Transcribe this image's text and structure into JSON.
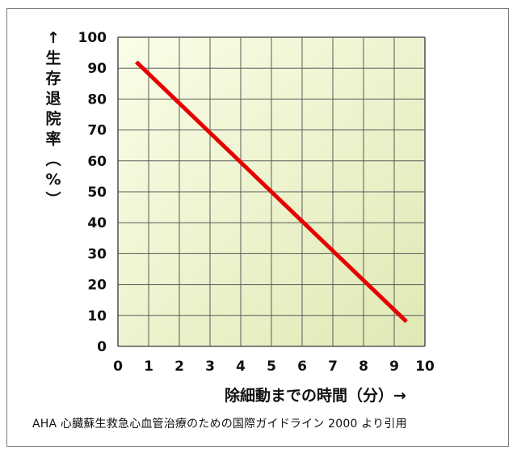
{
  "chart_data": {
    "type": "line",
    "xlabel": "除細動までの時間（分）→",
    "ylabel": "↑生存退院率（%）",
    "xlim": [
      0,
      10
    ],
    "ylim": [
      0,
      100
    ],
    "x_ticks": [
      "0",
      "1",
      "2",
      "3",
      "4",
      "5",
      "6",
      "7",
      "8",
      "9",
      "10"
    ],
    "y_ticks": [
      "0",
      "10",
      "20",
      "30",
      "40",
      "50",
      "60",
      "70",
      "80",
      "90",
      "100"
    ],
    "grid": true,
    "series": [
      {
        "x": [
          0.6,
          9.4
        ],
        "y": [
          92,
          8
        ],
        "color": "#e60000"
      }
    ],
    "annotation": "AHA 心臓蘇生救急心血管治療のための国際ガイドライン 2000 より引用",
    "colors": {
      "line": "#e60000",
      "grid": "#5a5a5a",
      "bg_light": "#fbfde8",
      "bg_dark": "#dfe9b4"
    }
  }
}
